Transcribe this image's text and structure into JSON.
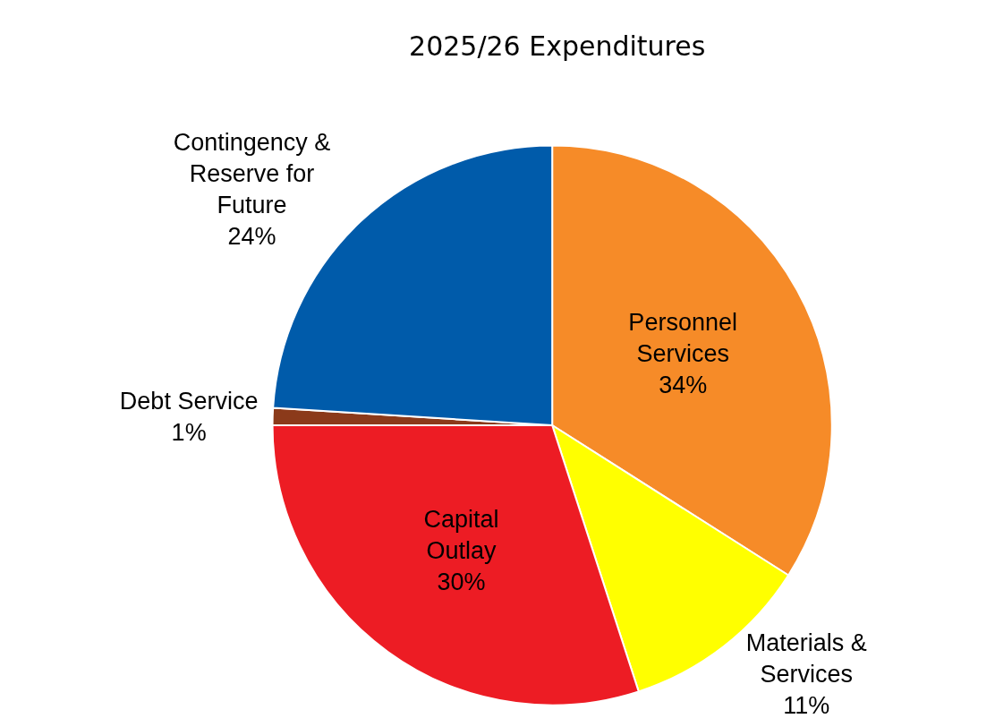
{
  "chart_data": {
    "type": "pie",
    "title": "2025/26 Expenditures",
    "categories": [
      "Personnel\nServices",
      "Materials &\nServices",
      "Capital\nOutlay",
      "Debt Service",
      "Contingency &\nReserve for\nFuture"
    ],
    "values": [
      34,
      11,
      30,
      1,
      24
    ],
    "value_labels": [
      "34%",
      "11%",
      "30%",
      "1%",
      "24%"
    ],
    "colors": [
      "#f68b28",
      "#ffff00",
      "#ed1c24",
      "#8b3a1a",
      "#005baa"
    ],
    "legend": false
  }
}
